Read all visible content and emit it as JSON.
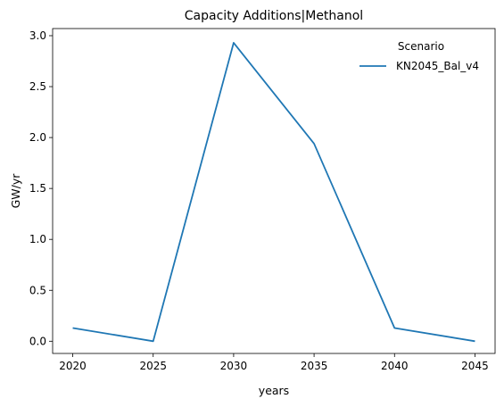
{
  "chart_data": {
    "type": "line",
    "title": "Capacity Additions|Methanol",
    "xlabel": "years",
    "ylabel": "GW/yr",
    "x": [
      2020,
      2025,
      2030,
      2035,
      2040,
      2045
    ],
    "xticks": [
      "2020",
      "2025",
      "2030",
      "2035",
      "2040",
      "2045"
    ],
    "yticks": [
      "0.0",
      "0.5",
      "1.0",
      "1.5",
      "2.0",
      "2.5",
      "3.0"
    ],
    "ylim": [
      -0.12,
      3.07
    ],
    "xlim": [
      2018.75,
      2046.25
    ],
    "grid": false,
    "legend": {
      "title": "Scenario",
      "placement": "top-right"
    },
    "series": [
      {
        "name": "KN2045_Bal_v4",
        "color": "#1f77b4",
        "values": [
          0.13,
          0.0,
          2.93,
          1.94,
          0.13,
          0.0
        ]
      }
    ]
  }
}
